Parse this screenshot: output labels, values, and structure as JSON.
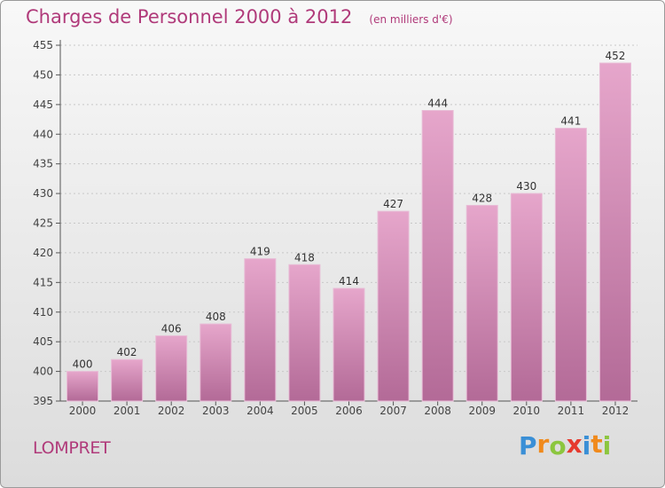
{
  "chart_data": {
    "type": "bar",
    "title": "Charges de Personnel 2000 à 2012",
    "subtitle": "(en milliers d'€)",
    "categories": [
      "2000",
      "2001",
      "2002",
      "2003",
      "2004",
      "2005",
      "2006",
      "2007",
      "2008",
      "2009",
      "2010",
      "2011",
      "2012"
    ],
    "values": [
      400,
      402,
      406,
      408,
      419,
      418,
      414,
      427,
      444,
      428,
      430,
      441,
      452
    ],
    "ylim": [
      395,
      455
    ],
    "yticks": [
      395,
      400,
      405,
      410,
      415,
      420,
      425,
      430,
      435,
      440,
      445,
      450,
      455
    ],
    "grid": true,
    "bar_color": "#cc7aa8"
  },
  "place_name": "LOMPRET",
  "logo": {
    "text": "Proxiti",
    "letters": [
      {
        "ch": "P",
        "color": "#3a8fd6"
      },
      {
        "ch": "r",
        "color": "#f08a1c"
      },
      {
        "ch": "o",
        "color": "#8cc63f"
      },
      {
        "ch": "x",
        "color": "#e63a2e"
      },
      {
        "ch": "i",
        "color": "#3a8fd6"
      },
      {
        "ch": "t",
        "color": "#f08a1c"
      },
      {
        "ch": "i",
        "color": "#8cc63f"
      }
    ]
  }
}
